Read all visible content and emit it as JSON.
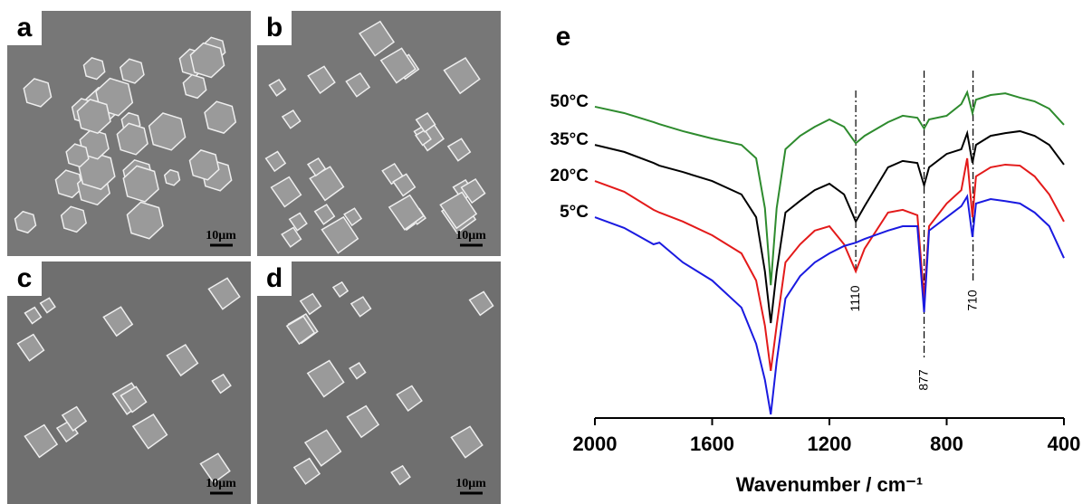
{
  "panels": [
    {
      "label": "a",
      "scale": "10μm"
    },
    {
      "label": "b",
      "scale": "10μm"
    },
    {
      "label": "c",
      "scale": "10μm"
    },
    {
      "label": "d",
      "scale": "10μm"
    }
  ],
  "chart_data": {
    "type": "line",
    "panel_label": "e",
    "xlabel": "Wavenumber / cm⁻¹",
    "x": [
      2000,
      1900,
      1800,
      1780,
      1700,
      1600,
      1500,
      1450,
      1420,
      1400,
      1380,
      1350,
      1300,
      1250,
      1200,
      1150,
      1110,
      1080,
      1000,
      950,
      900,
      877,
      860,
      800,
      750,
      730,
      712,
      700,
      650,
      600,
      550,
      500,
      450,
      400
    ],
    "xlim": [
      2000,
      400
    ],
    "xticks": [
      2000,
      1600,
      1200,
      800,
      400
    ],
    "ylim": [
      0,
      100
    ],
    "series": [
      {
        "name": "50°C",
        "color": "#2e8b2e",
        "values": [
          93.8,
          91.9,
          89.2,
          88.6,
          86.5,
          84.3,
          82.4,
          78.4,
          63.5,
          40.5,
          63.5,
          81.1,
          85.1,
          87.8,
          90,
          87.8,
          82.9,
          85.1,
          89.2,
          91.1,
          90.5,
          87.3,
          90,
          91.1,
          94.6,
          98.1,
          91.9,
          95.9,
          97.3,
          97.8,
          96.5,
          95.4,
          93.2,
          88.4
        ]
      },
      {
        "name": "35°C",
        "color": "#000000",
        "values": [
          82.4,
          80.3,
          77,
          76.2,
          74.3,
          71.6,
          67.6,
          60.8,
          44.6,
          29.2,
          44.6,
          62.2,
          65.7,
          68.9,
          70.8,
          67.6,
          59.5,
          64.1,
          75.7,
          77.6,
          77,
          70.3,
          75.7,
          79.7,
          81.1,
          85.9,
          77,
          82.4,
          85.1,
          85.9,
          86.5,
          85.1,
          82.4,
          76.5
        ]
      },
      {
        "name": "20°C",
        "color": "#e31a1a",
        "values": [
          71.6,
          68.4,
          63,
          62.2,
          59.5,
          55.4,
          50,
          41.9,
          28.4,
          14.9,
          28.4,
          47.3,
          52.7,
          56.8,
          58.1,
          52.7,
          44.6,
          51.4,
          62.2,
          63,
          61.4,
          36.5,
          58.1,
          64.9,
          68.9,
          78.4,
          60.8,
          73,
          75.7,
          76.5,
          76.2,
          73,
          67.6,
          59.5
        ]
      },
      {
        "name": "5°C",
        "color": "#1a1ae0",
        "values": [
          60.8,
          57.6,
          52.7,
          53.2,
          47.3,
          41.9,
          33.8,
          23,
          12.2,
          1.9,
          17.6,
          36.5,
          43.2,
          47.3,
          50,
          52.2,
          53.2,
          54.3,
          56.8,
          58.1,
          58.1,
          32.4,
          56.8,
          60.8,
          64.1,
          67,
          54.9,
          64.9,
          66.2,
          65.6,
          64.9,
          62.2,
          58.1,
          48.6
        ]
      }
    ],
    "annotations": [
      {
        "label": "1110",
        "x": 1110
      },
      {
        "label": "877",
        "x": 877
      },
      {
        "label": "710",
        "x": 710
      }
    ]
  }
}
